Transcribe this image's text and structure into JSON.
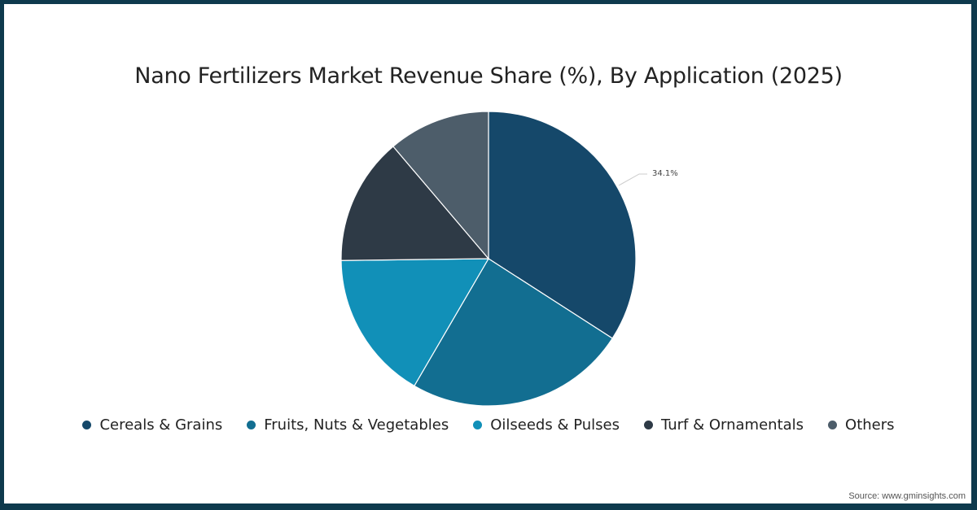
{
  "chart_data": {
    "type": "pie",
    "title": "Nano Fertilizers Market Revenue Share (%), By Application (2025)",
    "categories": [
      "Cereals & Grains",
      "Fruits, Nuts & Vegetables",
      "Oilseeds & Pulses",
      "Turf & Ornamentals",
      "Others"
    ],
    "values": [
      34.1,
      24.3,
      16.4,
      14.0,
      11.2
    ],
    "colors": [
      "#15486a",
      "#126e91",
      "#1190b8",
      "#2e3a46",
      "#4d5d6a"
    ],
    "data_labels": [
      {
        "category": "Cereals & Grains",
        "text": "34.1%"
      }
    ],
    "legend_position": "bottom",
    "source": "Source: www.gminsights.com"
  },
  "title": "Nano Fertilizers Market Revenue Share (%), By Application (2025)",
  "label_cereals": "34.1%",
  "legend": [
    {
      "label": "Cereals & Grains",
      "color": "#15486a"
    },
    {
      "label": "Fruits, Nuts & Vegetables",
      "color": "#126e91"
    },
    {
      "label": "Oilseeds & Pulses",
      "color": "#1190b8"
    },
    {
      "label": "Turf & Ornamentals",
      "color": "#2e3a46"
    },
    {
      "label": "Others",
      "color": "#4d5d6a"
    }
  ],
  "source": "Source: www.gminsights.com"
}
